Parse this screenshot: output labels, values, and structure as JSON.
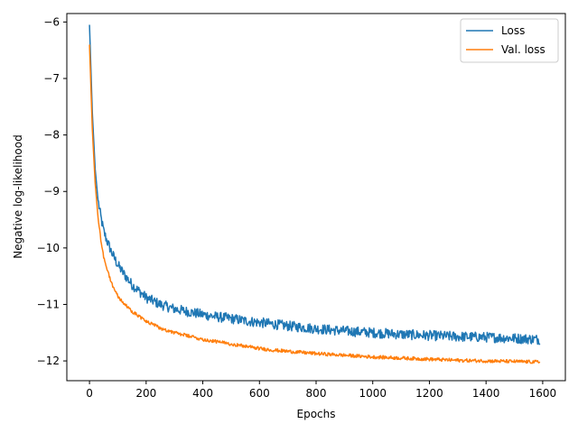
{
  "chart_data": {
    "type": "line",
    "title": "",
    "xlabel": "Epochs",
    "ylabel": "Negative log-likelihood",
    "xlim": [
      -80,
      1680
    ],
    "ylim": [
      -12.35,
      -5.85
    ],
    "xticks": [
      0,
      200,
      400,
      600,
      800,
      1000,
      1200,
      1400,
      1600
    ],
    "xtick_labels": [
      "0",
      "200",
      "400",
      "600",
      "800",
      "1000",
      "1200",
      "1400",
      "1600"
    ],
    "yticks": [
      -12,
      -11,
      -10,
      -9,
      -8,
      -7,
      -6
    ],
    "ytick_labels": [
      "−12",
      "−11",
      "−10",
      "−9",
      "−8",
      "−7",
      "−6"
    ],
    "grid": false,
    "legend_position": "top-right",
    "series": [
      {
        "name": "Loss",
        "color": "#1f77b4",
        "x": [
          0,
          10,
          20,
          30,
          40,
          50,
          60,
          80,
          100,
          120,
          150,
          200,
          250,
          300,
          350,
          400,
          450,
          500,
          550,
          600,
          650,
          700,
          800,
          900,
          1000,
          1100,
          1200,
          1300,
          1400,
          1500,
          1590
        ],
        "y": [
          -6.05,
          -7.6,
          -8.6,
          -9.15,
          -9.45,
          -9.7,
          -9.85,
          -10.1,
          -10.3,
          -10.45,
          -10.65,
          -10.88,
          -11.0,
          -11.08,
          -11.13,
          -11.18,
          -11.22,
          -11.25,
          -11.29,
          -11.32,
          -11.35,
          -11.38,
          -11.43,
          -11.47,
          -11.5,
          -11.53,
          -11.55,
          -11.57,
          -11.58,
          -11.6,
          -11.62
        ]
      },
      {
        "name": "Val. loss",
        "color": "#ff7f0e",
        "x": [
          0,
          10,
          20,
          30,
          40,
          50,
          60,
          80,
          100,
          120,
          150,
          200,
          250,
          300,
          350,
          400,
          450,
          500,
          550,
          600,
          650,
          700,
          800,
          900,
          1000,
          1100,
          1200,
          1300,
          1400,
          1500,
          1590
        ],
        "y": [
          -6.4,
          -7.9,
          -8.85,
          -9.45,
          -9.85,
          -10.15,
          -10.35,
          -10.65,
          -10.85,
          -10.98,
          -11.12,
          -11.3,
          -11.42,
          -11.5,
          -11.56,
          -11.62,
          -11.66,
          -11.7,
          -11.74,
          -11.78,
          -11.81,
          -11.83,
          -11.87,
          -11.9,
          -11.93,
          -11.95,
          -11.97,
          -11.99,
          -12.0,
          -12.01,
          -12.02
        ]
      }
    ]
  }
}
